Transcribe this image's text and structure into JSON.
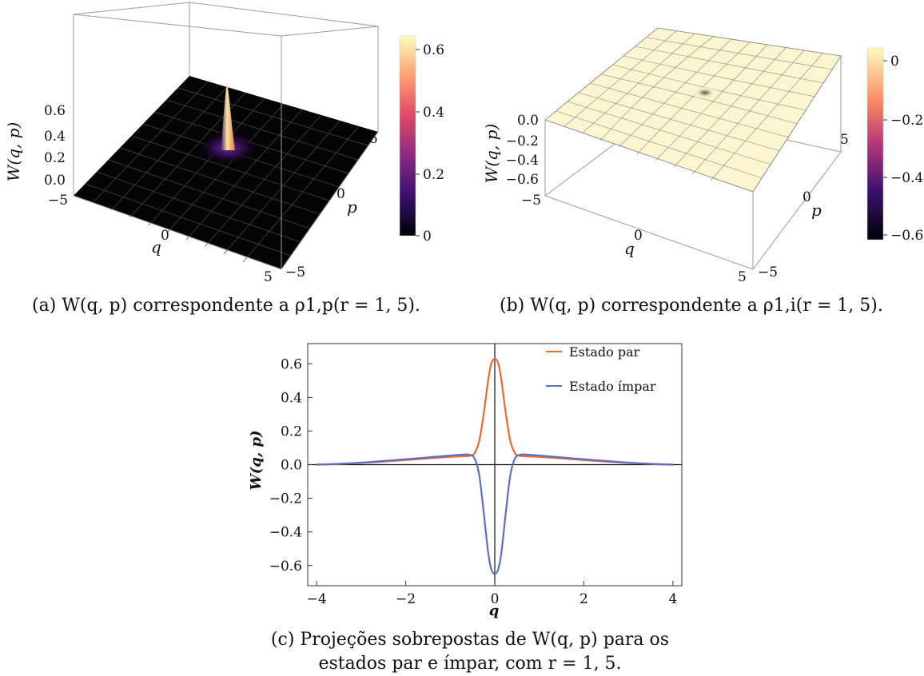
{
  "panel_a": {
    "z_axis_label": "W(q, p)",
    "z_ticks": [
      "0.6",
      "0.4",
      "0.2",
      "0.0"
    ],
    "q_axis_label": "q",
    "q_ticks": [
      "−5",
      "0",
      "5"
    ],
    "p_axis_label": "p",
    "p_ticks": [
      "5",
      "0",
      "−5"
    ],
    "colorbar_ticks": [
      "0.6",
      "0.4",
      "0.2",
      "0"
    ],
    "colorbar_colors": [
      "#000004",
      "#3b0f70",
      "#8c2981",
      "#de4968",
      "#fe9f6d",
      "#fcfdbf"
    ],
    "caption": "(a) W(q, p) correspondente a ρ1,p(r = 1, 5)."
  },
  "panel_b": {
    "z_axis_label": "W(q, p)",
    "z_ticks": [
      "0.0",
      "−0.2",
      "−0.4",
      "−0.6"
    ],
    "q_axis_label": "q",
    "q_ticks": [
      "−5",
      "0",
      "5"
    ],
    "p_axis_label": "p",
    "p_ticks": [
      "5",
      "0",
      "−5"
    ],
    "colorbar_ticks": [
      "0",
      "−0.2",
      "−0.4",
      "−0.6"
    ],
    "caption": "(b) W(q, p) correspondente a ρ1,i(r = 1, 5)."
  },
  "chart_data": {
    "type": "line",
    "title": "",
    "xlabel": "q",
    "ylabel": "W(q, p)",
    "xlim": [
      -4.2,
      4.2
    ],
    "ylim": [
      -0.72,
      0.72
    ],
    "x_ticks": [
      -4,
      -2,
      0,
      2,
      4
    ],
    "y_ticks": [
      0.6,
      0.4,
      0.2,
      0.0,
      -0.2,
      -0.4,
      -0.6
    ],
    "x_tick_labels": [
      "−4",
      "−2",
      "0",
      "2",
      "4"
    ],
    "y_tick_labels": [
      "0.6",
      "0.4",
      "0.2",
      "0.0",
      "−0.2",
      "−0.4",
      "−0.6"
    ],
    "legend_position": "top-right",
    "x": [
      -4,
      -3.5,
      -3,
      -2.5,
      -2,
      -1.5,
      -1,
      -0.7,
      -0.55,
      -0.45,
      -0.35,
      -0.25,
      -0.15,
      -0.08,
      0,
      0.08,
      0.15,
      0.25,
      0.35,
      0.45,
      0.55,
      0.7,
      1,
      1.5,
      2,
      2.5,
      3,
      3.5,
      4
    ],
    "series": [
      {
        "name": "Estado par",
        "color": "#e66d2e",
        "values": [
          0.0,
          0.004,
          0.01,
          0.018,
          0.027,
          0.037,
          0.046,
          0.05,
          0.053,
          0.07,
          0.14,
          0.3,
          0.5,
          0.6,
          0.63,
          0.6,
          0.5,
          0.3,
          0.14,
          0.07,
          0.053,
          0.05,
          0.046,
          0.037,
          0.027,
          0.018,
          0.01,
          0.004,
          0.0
        ]
      },
      {
        "name": "Estado ímpar",
        "color": "#5b6fc5",
        "values": [
          0.0,
          0.005,
          0.012,
          0.022,
          0.032,
          0.043,
          0.054,
          0.06,
          0.058,
          0.035,
          -0.06,
          -0.28,
          -0.52,
          -0.62,
          -0.65,
          -0.62,
          -0.52,
          -0.28,
          -0.06,
          0.035,
          0.058,
          0.06,
          0.054,
          0.043,
          0.032,
          0.022,
          0.012,
          0.005,
          0.0
        ]
      }
    ]
  },
  "caption_c": "(c) Projeções sobrepostas de W(q, p) para os estados par e ímpar, com r = 1, 5."
}
